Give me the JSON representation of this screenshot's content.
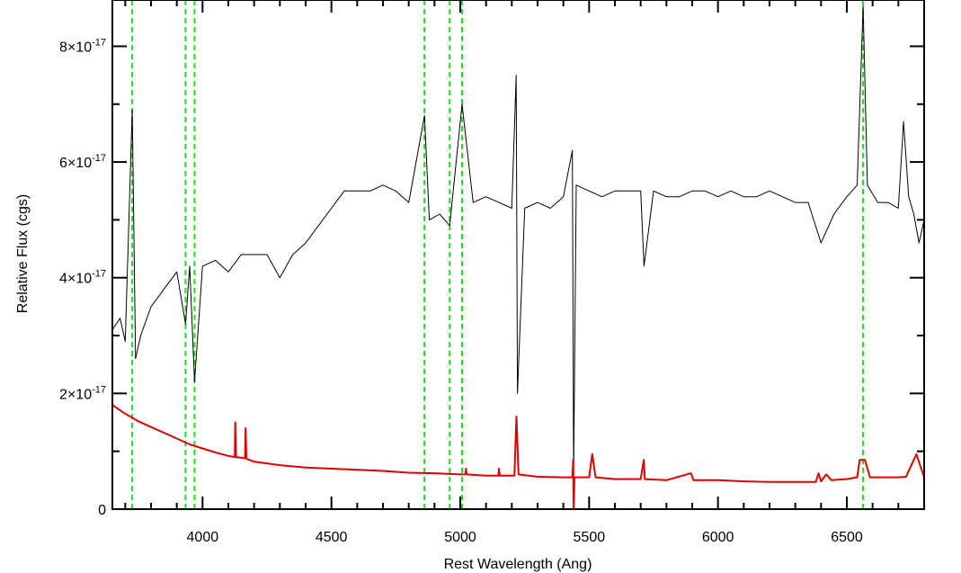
{
  "chart_data": {
    "type": "line",
    "title": "",
    "xlabel": "Rest Wavelength (Ang)",
    "ylabel": "Relative Flux (cgs)",
    "xlim": [
      3650,
      6800
    ],
    "ylim": [
      0,
      8.8e-17
    ],
    "x_ticks": [
      4000,
      4500,
      5000,
      5500,
      6000,
      6500
    ],
    "x_tick_labels": [
      "4000",
      "4500",
      "5000",
      "5500",
      "6000",
      "6500"
    ],
    "y_ticks": [
      0,
      2e-17,
      4e-17,
      6e-17,
      8e-17
    ],
    "y_tick_labels": [
      {
        "base": "0",
        "exp": ""
      },
      {
        "base": "2×10",
        "exp": "-17"
      },
      {
        "base": "4×10",
        "exp": "-17"
      },
      {
        "base": "6×10",
        "exp": "-17"
      },
      {
        "base": "8×10",
        "exp": "-17"
      }
    ],
    "reference_lines_x": [
      3727,
      3934,
      3969,
      4861,
      4959,
      5007,
      6563
    ],
    "series": [
      {
        "color": "#000000",
        "style": "line",
        "points": [
          [
            3650,
            3.1e-17
          ],
          [
            3680,
            3.3e-17
          ],
          [
            3700,
            2.9e-17
          ],
          [
            3727,
            6.9e-17
          ],
          [
            3740,
            2.6e-17
          ],
          [
            3760,
            3e-17
          ],
          [
            3800,
            3.5e-17
          ],
          [
            3850,
            3.8e-17
          ],
          [
            3900,
            4.1e-17
          ],
          [
            3934,
            3.2e-17
          ],
          [
            3950,
            4.2e-17
          ],
          [
            3969,
            2.2e-17
          ],
          [
            4000,
            4.2e-17
          ],
          [
            4050,
            4.3e-17
          ],
          [
            4100,
            4.1e-17
          ],
          [
            4150,
            4.4e-17
          ],
          [
            4200,
            4.4e-17
          ],
          [
            4250,
            4.4e-17
          ],
          [
            4300,
            4e-17
          ],
          [
            4350,
            4.4e-17
          ],
          [
            4400,
            4.6e-17
          ],
          [
            4450,
            4.9e-17
          ],
          [
            4500,
            5.2e-17
          ],
          [
            4550,
            5.5e-17
          ],
          [
            4600,
            5.5e-17
          ],
          [
            4650,
            5.5e-17
          ],
          [
            4700,
            5.6e-17
          ],
          [
            4750,
            5.5e-17
          ],
          [
            4800,
            5.3e-17
          ],
          [
            4861,
            6.8e-17
          ],
          [
            4880,
            5e-17
          ],
          [
            4920,
            5.1e-17
          ],
          [
            4959,
            4.9e-17
          ],
          [
            5007,
            7e-17
          ],
          [
            5050,
            5.3e-17
          ],
          [
            5100,
            5.4e-17
          ],
          [
            5150,
            5.3e-17
          ],
          [
            5200,
            5.2e-17
          ],
          [
            5217,
            7.5e-17
          ],
          [
            5222,
            2e-17
          ],
          [
            5250,
            5.2e-17
          ],
          [
            5300,
            5.3e-17
          ],
          [
            5350,
            5.2e-17
          ],
          [
            5400,
            5.4e-17
          ],
          [
            5435,
            6.2e-17
          ],
          [
            5440,
            6e-18
          ],
          [
            5450,
            5.6e-17
          ],
          [
            5500,
            5.5e-17
          ],
          [
            5550,
            5.4e-17
          ],
          [
            5600,
            5.5e-17
          ],
          [
            5650,
            5.5e-17
          ],
          [
            5700,
            5.5e-17
          ],
          [
            5713,
            4.2e-17
          ],
          [
            5750,
            5.5e-17
          ],
          [
            5800,
            5.4e-17
          ],
          [
            5850,
            5.4e-17
          ],
          [
            5900,
            5.5e-17
          ],
          [
            5950,
            5.5e-17
          ],
          [
            6000,
            5.4e-17
          ],
          [
            6050,
            5.5e-17
          ],
          [
            6100,
            5.4e-17
          ],
          [
            6150,
            5.4e-17
          ],
          [
            6200,
            5.5e-17
          ],
          [
            6250,
            5.4e-17
          ],
          [
            6300,
            5.3e-17
          ],
          [
            6350,
            5.3e-17
          ],
          [
            6400,
            4.6e-17
          ],
          [
            6450,
            5.1e-17
          ],
          [
            6500,
            5.4e-17
          ],
          [
            6540,
            5.6e-17
          ],
          [
            6563,
            8.7e-17
          ],
          [
            6580,
            5.6e-17
          ],
          [
            6620,
            5.3e-17
          ],
          [
            6660,
            5.3e-17
          ],
          [
            6700,
            5.2e-17
          ],
          [
            6720,
            6.7e-17
          ],
          [
            6740,
            5.4e-17
          ],
          [
            6760,
            5.1e-17
          ],
          [
            6780,
            4.6e-17
          ],
          [
            6800,
            5e-17
          ]
        ]
      },
      {
        "color": "#e00000",
        "style": "line",
        "points": [
          [
            3650,
            1.8e-17
          ],
          [
            3700,
            1.65e-17
          ],
          [
            3750,
            1.52e-17
          ],
          [
            3800,
            1.42e-17
          ],
          [
            3850,
            1.32e-17
          ],
          [
            3900,
            1.22e-17
          ],
          [
            3950,
            1.12e-17
          ],
          [
            4000,
            1.05e-17
          ],
          [
            4050,
            9.8e-18
          ],
          [
            4100,
            9.2e-18
          ],
          [
            4125,
            9e-18
          ],
          [
            4127,
            1.5e-17
          ],
          [
            4130,
            9e-18
          ],
          [
            4165,
            8.8e-18
          ],
          [
            4167,
            1.4e-17
          ],
          [
            4170,
            8.7e-18
          ],
          [
            4200,
            8.2e-18
          ],
          [
            4300,
            7.6e-18
          ],
          [
            4400,
            7.2e-18
          ],
          [
            4500,
            7e-18
          ],
          [
            4600,
            6.8e-18
          ],
          [
            4700,
            6.6e-18
          ],
          [
            4800,
            6.3e-18
          ],
          [
            4900,
            6.2e-18
          ],
          [
            5000,
            6e-18
          ],
          [
            5020,
            6e-18
          ],
          [
            5022,
            7e-18
          ],
          [
            5025,
            6e-18
          ],
          [
            5100,
            5.8e-18
          ],
          [
            5148,
            5.8e-18
          ],
          [
            5150,
            7e-18
          ],
          [
            5153,
            5.8e-18
          ],
          [
            5210,
            5.8e-18
          ],
          [
            5218,
            1.6e-17
          ],
          [
            5226,
            6e-18
          ],
          [
            5300,
            5.6e-18
          ],
          [
            5400,
            5.5e-18
          ],
          [
            5435,
            5.5e-18
          ],
          [
            5438,
            8.5e-18
          ],
          [
            5440,
            -1e-18
          ],
          [
            5443,
            5.5e-18
          ],
          [
            5500,
            5.5e-18
          ],
          [
            5512,
            9.5e-18
          ],
          [
            5525,
            5.5e-18
          ],
          [
            5600,
            5.2e-18
          ],
          [
            5700,
            5.2e-18
          ],
          [
            5712,
            8.5e-18
          ],
          [
            5716,
            5.2e-18
          ],
          [
            5800,
            5e-18
          ],
          [
            5895,
            6.2e-18
          ],
          [
            5905,
            5e-18
          ],
          [
            6000,
            5e-18
          ],
          [
            6100,
            4.8e-18
          ],
          [
            6200,
            4.7e-18
          ],
          [
            6300,
            4.7e-18
          ],
          [
            6380,
            4.7e-18
          ],
          [
            6390,
            6.2e-18
          ],
          [
            6400,
            4.8e-18
          ],
          [
            6420,
            6e-18
          ],
          [
            6440,
            5e-18
          ],
          [
            6500,
            5.2e-18
          ],
          [
            6540,
            5.5e-18
          ],
          [
            6550,
            8.5e-18
          ],
          [
            6570,
            8.5e-18
          ],
          [
            6590,
            5.5e-18
          ],
          [
            6650,
            5.5e-18
          ],
          [
            6700,
            5.5e-18
          ],
          [
            6730,
            5.6e-18
          ],
          [
            6770,
            9.5e-18
          ],
          [
            6800,
            5.5e-18
          ]
        ]
      }
    ],
    "colors": {
      "spectrum": "#000000",
      "noise": "#e00000",
      "reference_lines": "#22dd22",
      "axes": "#000000"
    }
  }
}
